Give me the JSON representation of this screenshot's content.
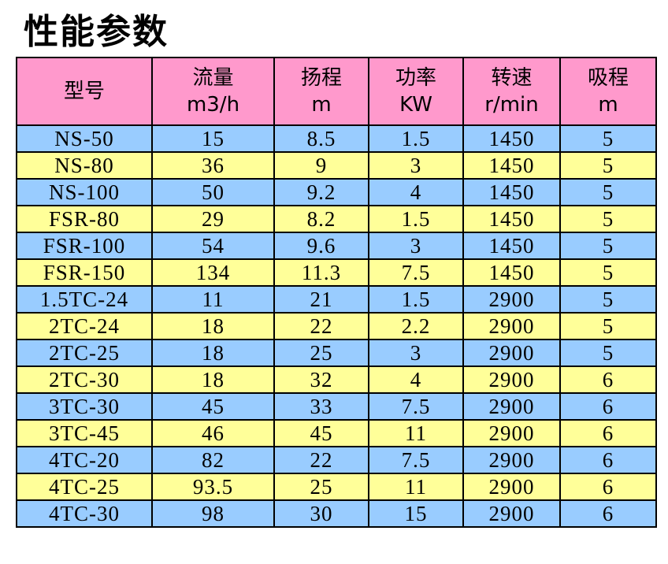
{
  "title": "性能参数",
  "table": {
    "header": [
      [
        "型号"
      ],
      [
        "流量",
        "m3/h"
      ],
      [
        "扬程",
        "m"
      ],
      [
        "功率",
        "KW"
      ],
      [
        "转速",
        "r/min"
      ],
      [
        "吸程",
        "m"
      ]
    ],
    "rows": [
      [
        "NS-50",
        "15",
        "8.5",
        "1.5",
        "1450",
        "5"
      ],
      [
        "NS-80",
        "36",
        "9",
        "3",
        "1450",
        "5"
      ],
      [
        "NS-100",
        "50",
        "9.2",
        "4",
        "1450",
        "5"
      ],
      [
        "FSR-80",
        "29",
        "8.2",
        "1.5",
        "1450",
        "5"
      ],
      [
        "FSR-100",
        "54",
        "9.6",
        "3",
        "1450",
        "5"
      ],
      [
        "FSR-150",
        "134",
        "11.3",
        "7.5",
        "1450",
        "5"
      ],
      [
        "1.5TC-24",
        "11",
        "21",
        "1.5",
        "2900",
        "5"
      ],
      [
        "2TC-24",
        "18",
        "22",
        "2.2",
        "2900",
        "5"
      ],
      [
        "2TC-25",
        "18",
        "25",
        "3",
        "2900",
        "5"
      ],
      [
        "2TC-30",
        "18",
        "32",
        "4",
        "2900",
        "6"
      ],
      [
        "3TC-30",
        "45",
        "33",
        "7.5",
        "2900",
        "6"
      ],
      [
        "3TC-45",
        "46",
        "45",
        "11",
        "2900",
        "6"
      ],
      [
        "4TC-20",
        "82",
        "22",
        "7.5",
        "2900",
        "6"
      ],
      [
        "4TC-25",
        "93.5",
        "25",
        "11",
        "2900",
        "6"
      ],
      [
        "4TC-30",
        "98",
        "30",
        "15",
        "2900",
        "6"
      ]
    ]
  }
}
